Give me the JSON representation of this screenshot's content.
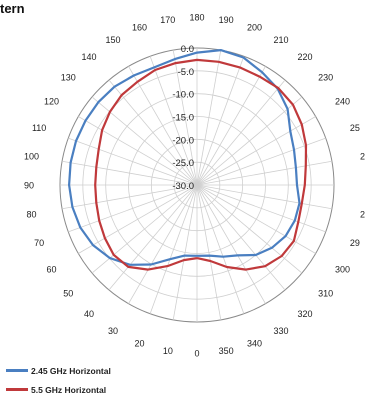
{
  "title": "tern",
  "chart_data": {
    "type": "polar-line",
    "angular_ticks": [
      "0",
      "10",
      "20",
      "30",
      "40",
      "50",
      "60",
      "70",
      "80",
      "90",
      "100",
      "110",
      "120",
      "130",
      "140",
      "150",
      "160",
      "170",
      "180",
      "190",
      "200",
      "210",
      "220",
      "230",
      "240",
      "25",
      "2",
      "",
      "2",
      "29",
      "300",
      "310",
      "320",
      "330",
      "340",
      "350"
    ],
    "radial_ticks": [
      "0.0",
      "-5.0",
      "-10.0",
      "-15.0",
      "-20.0",
      "-25.0",
      "-30.0"
    ],
    "r_range": [
      -30,
      0
    ],
    "grid": true,
    "series": [
      {
        "name": "2.45 GHz Horizontal",
        "color": "#4a7fc1",
        "values": [
          -14.5,
          -14.3,
          -12.7,
          -9.9,
          -7.2,
          -5.1,
          -3.7,
          -2.8,
          -2.3,
          -2.0,
          -1.9,
          -1.8,
          -1.8,
          -1.8,
          -1.9,
          -2.3,
          -2.6,
          -2.0,
          -1.0,
          0.0,
          -0.3,
          -1.5,
          -2.5,
          -4.1,
          -6.4,
          -7.4,
          -8.0,
          -8.1,
          -7.2,
          -7.2,
          -7.6,
          -8.6,
          -10.0,
          -12.2,
          -13.3,
          -14.3
        ]
      },
      {
        "name": "5.5 GHz Horizontal",
        "color": "#c0393b",
        "values": [
          -14.0,
          -13.3,
          -11.1,
          -8.6,
          -6.6,
          -6.2,
          -6.7,
          -7.2,
          -7.6,
          -7.7,
          -7.6,
          -7.1,
          -6.0,
          -5.1,
          -4.3,
          -3.9,
          -3.2,
          -2.9,
          -2.6,
          -2.6,
          -2.6,
          -2.6,
          -2.3,
          -2.6,
          -3.5,
          -4.6,
          -5.8,
          -6.4,
          -6.7,
          -6.4,
          -5.5,
          -5.8,
          -6.8,
          -8.6,
          -10.9,
          -13.1
        ]
      }
    ]
  }
}
